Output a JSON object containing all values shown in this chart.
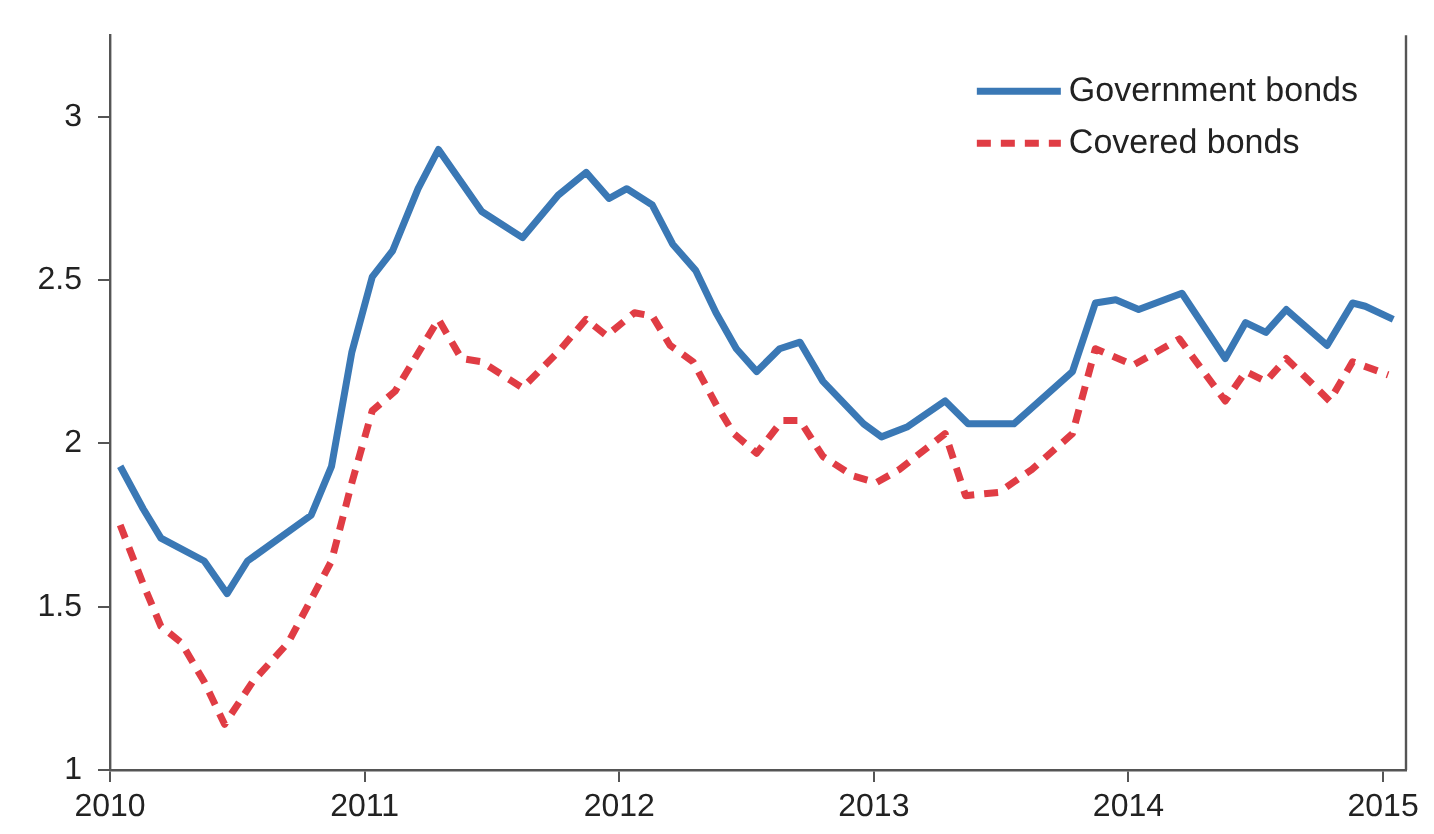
{
  "chart_data": {
    "type": "line",
    "xlim": [
      2010,
      2015.09
    ],
    "xticks": [
      2010,
      2011,
      2012,
      2013,
      2014,
      2015
    ],
    "ylim": [
      1,
      3.25
    ],
    "yticks": [
      1,
      1.5,
      2,
      2.5,
      3
    ],
    "grid": false,
    "legend": "top right",
    "marker": "none",
    "series": [
      {
        "name": "Government bonds",
        "color": "#3a78b5",
        "line_style": "solid",
        "x": [
          2010.04,
          2010.13,
          2010.2,
          2010.37,
          2010.46,
          2010.54,
          2010.79,
          2010.87,
          2010.95,
          2011.03,
          2011.11,
          2011.21,
          2011.29,
          2011.46,
          2011.62,
          2011.76,
          2011.87,
          2011.96,
          2012.03,
          2012.13,
          2012.21,
          2012.3,
          2012.38,
          2012.46,
          2012.54,
          2012.63,
          2012.71,
          2012.8,
          2012.96,
          2013.03,
          2013.13,
          2013.28,
          2013.37,
          2013.49,
          2013.55,
          2013.78,
          2013.87,
          2013.95,
          2014.04,
          2014.21,
          2014.38,
          2014.46,
          2014.54,
          2014.62,
          2014.78,
          2014.88,
          2014.93,
          2015.04
        ],
        "values": [
          1.93,
          1.8,
          1.71,
          1.64,
          1.54,
          1.64,
          1.78,
          1.93,
          2.28,
          2.51,
          2.59,
          2.78,
          2.9,
          2.71,
          2.63,
          2.76,
          2.83,
          2.75,
          2.78,
          2.73,
          2.61,
          2.53,
          2.4,
          2.29,
          2.22,
          2.29,
          2.31,
          2.19,
          2.06,
          2.02,
          2.05,
          2.13,
          2.06,
          2.06,
          2.06,
          2.22,
          2.43,
          2.44,
          2.41,
          2.46,
          2.26,
          2.37,
          2.34,
          2.41,
          2.3,
          2.43,
          2.42,
          2.38
        ]
      },
      {
        "name": "Covered bonds",
        "color": "#e03c44",
        "line_style": "dashed",
        "x": [
          2010.04,
          2010.13,
          2010.2,
          2010.28,
          2010.37,
          2010.45,
          2010.56,
          2010.7,
          2010.87,
          2010.95,
          2011.03,
          2011.12,
          2011.29,
          2011.38,
          2011.46,
          2011.62,
          2011.76,
          2011.87,
          2011.95,
          2012.06,
          2012.13,
          2012.2,
          2012.29,
          2012.38,
          2012.45,
          2012.54,
          2012.64,
          2012.71,
          2012.8,
          2012.92,
          2013.01,
          2013.1,
          2013.28,
          2013.36,
          2013.49,
          2013.62,
          2013.78,
          2013.87,
          2014.02,
          2014.2,
          2014.38,
          2014.46,
          2014.54,
          2014.62,
          2014.79,
          2014.88,
          2015.02
        ],
        "values": [
          1.75,
          1.57,
          1.44,
          1.39,
          1.27,
          1.14,
          1.27,
          1.39,
          1.64,
          1.88,
          2.1,
          2.16,
          2.38,
          2.26,
          2.25,
          2.17,
          2.28,
          2.38,
          2.33,
          2.4,
          2.39,
          2.3,
          2.25,
          2.12,
          2.03,
          1.97,
          2.07,
          2.07,
          1.96,
          1.9,
          1.88,
          1.92,
          2.03,
          1.84,
          1.85,
          1.92,
          2.03,
          2.29,
          2.24,
          2.32,
          2.13,
          2.22,
          2.19,
          2.26,
          2.13,
          2.25,
          2.21
        ]
      }
    ]
  }
}
